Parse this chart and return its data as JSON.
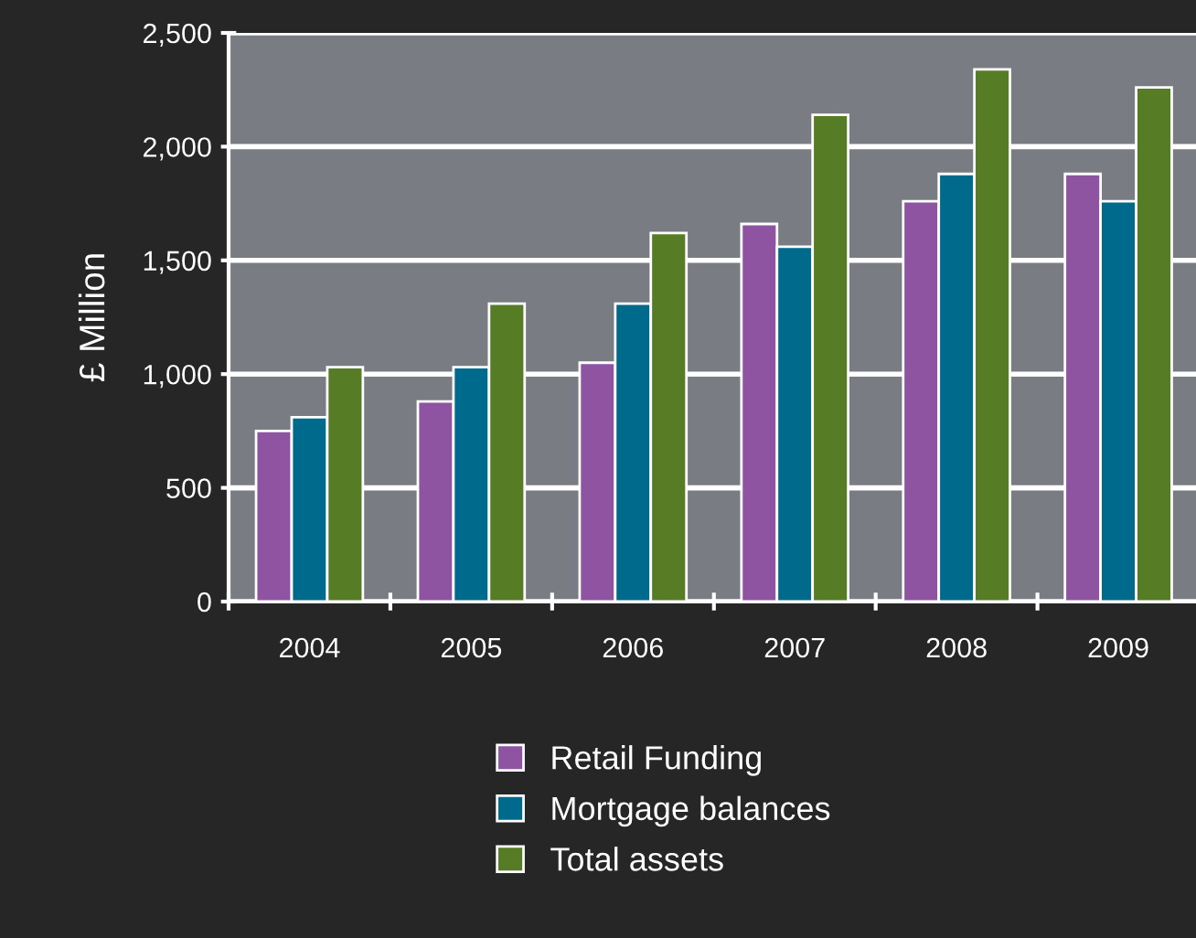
{
  "chart_data": {
    "type": "bar",
    "ylabel": "£ Million",
    "categories": [
      "2004",
      "2005",
      "2006",
      "2007",
      "2008",
      "2009"
    ],
    "series": [
      {
        "name": "Retail Funding",
        "color": "#8e54a2",
        "values": [
          750,
          880,
          1050,
          1660,
          1760,
          1880
        ]
      },
      {
        "name": "Mortgage balances",
        "color": "#006a8c",
        "values": [
          810,
          1030,
          1310,
          1560,
          1880,
          1760
        ]
      },
      {
        "name": "Total assets",
        "color": "#567c26",
        "values": [
          1030,
          1310,
          1620,
          2140,
          2340,
          2260
        ]
      }
    ],
    "ylim": [
      0,
      2500
    ],
    "yticks": [
      0,
      {
        "value": 500,
        "label": "500"
      },
      {
        "value": 1000,
        "label": "1,000"
      },
      {
        "value": 1500,
        "label": "1,500"
      },
      {
        "value": 2000,
        "label": "2,000"
      },
      {
        "value": 2500,
        "label": "2,500"
      }
    ],
    "grid": "y",
    "legend": "bottom"
  }
}
